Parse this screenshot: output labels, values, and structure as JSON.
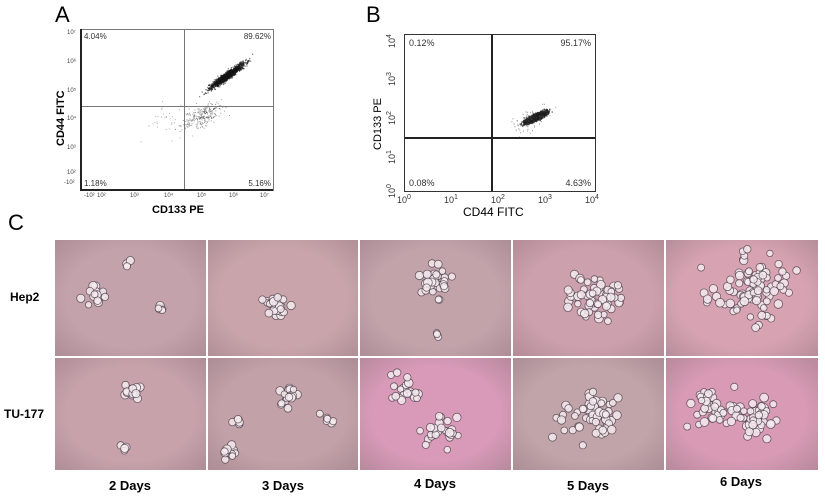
{
  "figure": {
    "panel_letters": {
      "a": "A",
      "b": "B",
      "c": "C"
    }
  },
  "panel_a": {
    "xlabel": "CD133 PE",
    "ylabel": "CD44 FITC",
    "quadrants": {
      "ul": "4.04%",
      "ur": "89.62%",
      "ll": "1.18%",
      "lr": "5.16%"
    },
    "xticks": [
      "-10²",
      "10²",
      "10³",
      "10⁴",
      "10⁵",
      "10⁶",
      "10⁷"
    ],
    "yticks": [
      "10⁷",
      "10⁶",
      "10⁵",
      "10⁴",
      "10³",
      "10²",
      "-10²"
    ]
  },
  "panel_b": {
    "xlabel": "CD44 FITC",
    "ylabel": "CD133 PE",
    "quadrants": {
      "ul": "0.12%",
      "ur": "95.17%",
      "ll": "0.08%",
      "lr": "4.63%"
    },
    "xticks": [
      "10",
      "10",
      "10",
      "10",
      "10"
    ],
    "xtick_exp": [
      "0",
      "1",
      "2",
      "3",
      "4"
    ],
    "yticks": [
      "10",
      "10",
      "10",
      "10",
      "10"
    ],
    "ytick_exp": [
      "4",
      "3",
      "2",
      "1",
      "0"
    ]
  },
  "panel_c": {
    "rows": [
      "Hep2",
      "TU-177"
    ],
    "columns": [
      "2 Days",
      "3 Days",
      "4 Days",
      "5 Days",
      "6 Days"
    ],
    "colors": {
      "hep2": [
        "#c4a2ab",
        "#c9a5ab",
        "#c3a3aa",
        "#cda0ad",
        "#d7a3b3"
      ],
      "tu177": [
        "#c7a2ab",
        "#c2a1a8",
        "#d89ab8",
        "#c0a4a9",
        "#d89ab5"
      ]
    }
  },
  "chart_data": [
    {
      "type": "scatter",
      "title": "A",
      "xlabel": "CD133 PE",
      "ylabel": "CD44 FITC",
      "xscale": "log",
      "yscale": "log",
      "quadrant_percentages": {
        "upper_left": 4.04,
        "upper_right": 89.62,
        "lower_left": 1.18,
        "lower_right": 5.16
      },
      "gate": {
        "x": 30000,
        "y": 30000
      },
      "population_center": {
        "x": 300000,
        "y": 300000
      }
    },
    {
      "type": "scatter",
      "title": "B",
      "xlabel": "CD44 FITC",
      "ylabel": "CD133 PE",
      "xlim": [
        1,
        10000
      ],
      "ylim": [
        1,
        10000
      ],
      "xscale": "log",
      "yscale": "log",
      "quadrant_percentages": {
        "upper_left": 0.12,
        "upper_right": 95.17,
        "lower_left": 0.08,
        "lower_right": 4.63
      },
      "gate": {
        "x": 65,
        "y": 22
      },
      "population_center": {
        "x": 350,
        "y": 40
      }
    }
  ]
}
